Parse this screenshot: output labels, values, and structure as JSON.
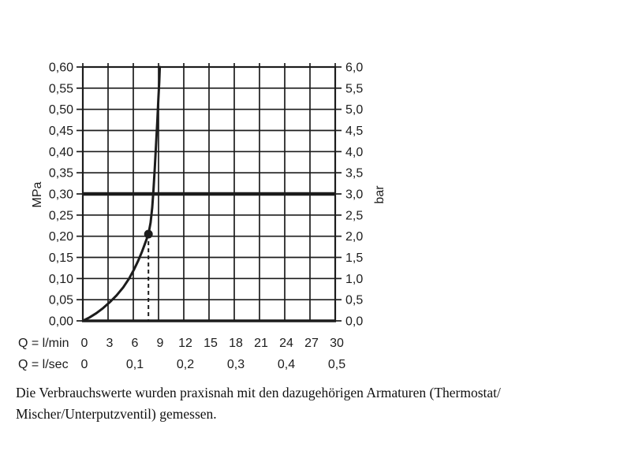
{
  "chart_data": {
    "type": "line",
    "title": "",
    "grid": true,
    "colors": {
      "ink": "#1c1c1c",
      "background": "#ffffff"
    },
    "x_axis": {
      "row1_label": "Q = l/min",
      "row2_label": "Q = l/sec",
      "range_lmin": [
        0,
        30
      ],
      "ticks_lmin": {
        "values": [
          0,
          3,
          6,
          9,
          12,
          15,
          18,
          21,
          24,
          27,
          30
        ],
        "labels": [
          "0",
          "3",
          "6",
          "9",
          "12",
          "15",
          "18",
          "21",
          "24",
          "27",
          "30"
        ]
      },
      "ticks_lsec": {
        "values": [
          0,
          6,
          12,
          18,
          24,
          30
        ],
        "labels": [
          "0",
          "0,1",
          "0,2",
          "0,3",
          "0,4",
          "0,5"
        ]
      }
    },
    "y_axis_left": {
      "unit": "MPa",
      "range": [
        0,
        0.6
      ],
      "step": 0.05,
      "ticks": {
        "values": [
          0,
          0.05,
          0.1,
          0.15,
          0.2,
          0.25,
          0.3,
          0.35,
          0.4,
          0.45,
          0.5,
          0.55,
          0.6
        ],
        "labels": [
          "0,00",
          "0,05",
          "0,10",
          "0,15",
          "0,20",
          "0,25",
          "0,30",
          "0,35",
          "0,40",
          "0,45",
          "0,50",
          "0,55",
          "0,60"
        ]
      }
    },
    "y_axis_right": {
      "unit": "bar",
      "range": [
        0,
        6
      ],
      "step": 0.5,
      "ticks": {
        "values": [
          0,
          0.5,
          1,
          1.5,
          2,
          2.5,
          3,
          3.5,
          4,
          4.5,
          5,
          5.5,
          6
        ],
        "labels": [
          "0,0",
          "0,5",
          "1,0",
          "1,5",
          "2,0",
          "2,5",
          "3,0",
          "3,5",
          "4,0",
          "4,5",
          "5,0",
          "5,5",
          "6,0"
        ]
      }
    },
    "reference_line_mpa": 0.3,
    "marker": {
      "lmin": 7.8,
      "mpa": 0.205
    },
    "series": [
      {
        "name": "flow-pressure-curve",
        "points": [
          [
            0,
            0
          ],
          [
            0.8,
            0.008
          ],
          [
            1.6,
            0.018
          ],
          [
            2.4,
            0.03
          ],
          [
            3.2,
            0.044
          ],
          [
            4,
            0.06
          ],
          [
            4.8,
            0.079
          ],
          [
            5.5,
            0.1
          ],
          [
            6.1,
            0.122
          ],
          [
            6.6,
            0.143
          ],
          [
            7,
            0.162
          ],
          [
            7.4,
            0.183
          ],
          [
            7.8,
            0.205
          ],
          [
            8.05,
            0.232
          ],
          [
            8.25,
            0.268
          ],
          [
            8.4,
            0.31
          ],
          [
            8.55,
            0.36
          ],
          [
            8.7,
            0.415
          ],
          [
            8.85,
            0.47
          ],
          [
            8.98,
            0.525
          ],
          [
            9.08,
            0.565
          ],
          [
            9.15,
            0.6
          ]
        ]
      }
    ]
  },
  "caption": {
    "line1": "Die Verbrauchswerte wurden praxisnah mit den dazugehörigen Armaturen (Thermostat/",
    "line2": "Mischer/Unterputzventil) gemessen."
  }
}
